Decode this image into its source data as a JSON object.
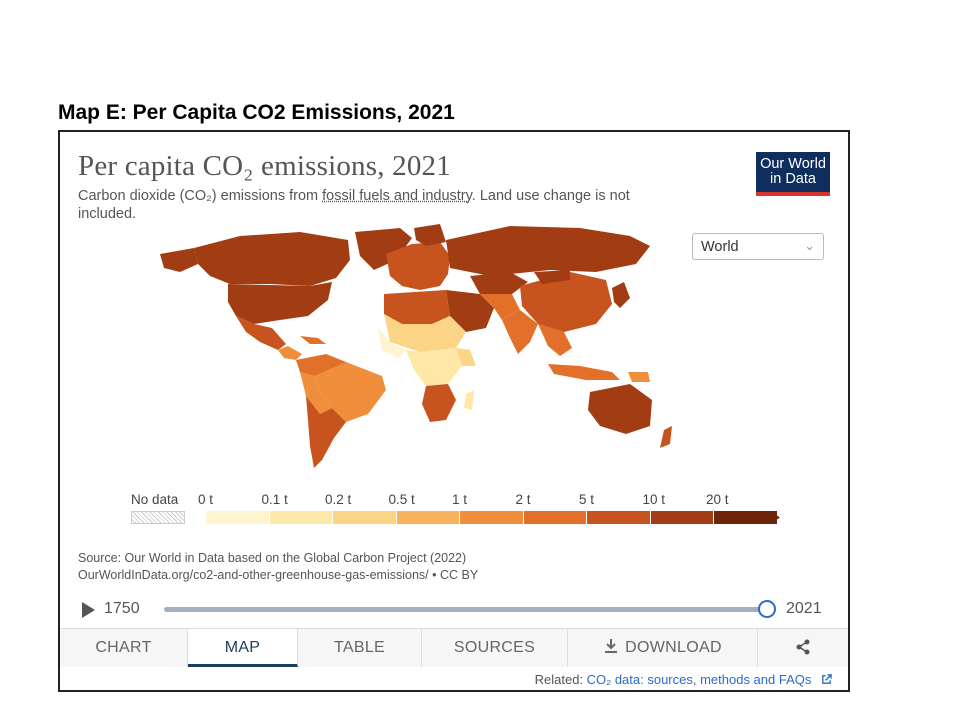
{
  "heading": "Map E: Per Capita CO2 Emissions, 2021",
  "chart": {
    "title": "Per capita CO₂ emissions, 2021",
    "subtitle_pre": "Carbon dioxide (CO₂) emissions from ",
    "subtitle_link": "fossil fuels and industry",
    "subtitle_post": ". Land use change is not included."
  },
  "logo": {
    "line1": "Our World",
    "line2": "in Data"
  },
  "region_select": {
    "value": "World"
  },
  "legend": {
    "nodata_label": "No data",
    "bins": [
      {
        "label": "0 t",
        "color": "#fef4cf"
      },
      {
        "label": "0.1 t",
        "color": "#fde8a8"
      },
      {
        "label": "0.2 t",
        "color": "#fbd585"
      },
      {
        "label": "0.5 t",
        "color": "#f8b25d"
      },
      {
        "label": "1 t",
        "color": "#f08e3c"
      },
      {
        "label": "2 t",
        "color": "#e3702a"
      },
      {
        "label": "5 t",
        "color": "#c7531e"
      },
      {
        "label": "10 t",
        "color": "#a23d13"
      },
      {
        "label": "20 t",
        "color": "#6e240a"
      }
    ]
  },
  "source": {
    "line1": "Source: Our World in Data based on the Global Carbon Project (2022)",
    "line2": "OurWorldInData.org/co2-and-other-greenhouse-gas-emissions/ • CC BY"
  },
  "timeline": {
    "start": "1750",
    "end": "2021",
    "position_fraction": 1.0
  },
  "tabs": [
    "CHART",
    "MAP",
    "TABLE",
    "SOURCES",
    "DOWNLOAD"
  ],
  "active_tab": "MAP",
  "related": {
    "prefix": "Related: ",
    "link": "CO₂ data: sources, methods and FAQs"
  },
  "colors": {
    "navy": "#0f2e5d",
    "red": "#d9342b",
    "accent": "#2a6bc6"
  }
}
